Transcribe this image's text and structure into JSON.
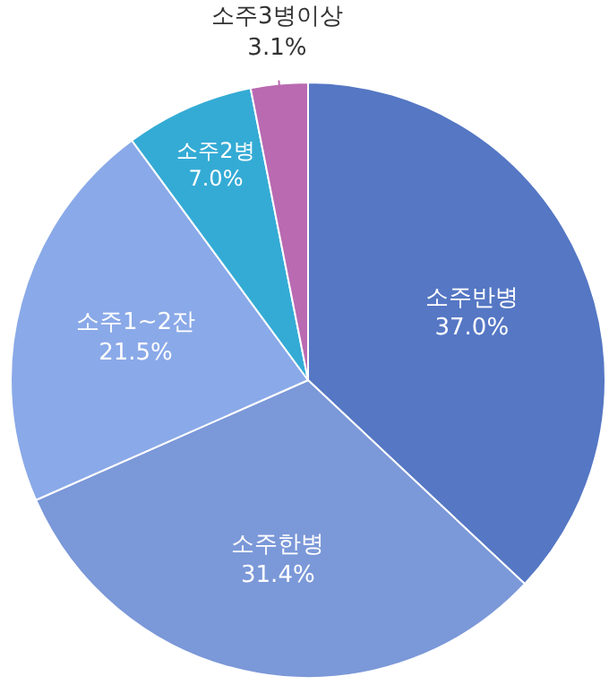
{
  "chart_data": {
    "type": "pie",
    "categories": [
      "소주반병",
      "소주한병",
      "소주1~2잔",
      "소주2병",
      "소주3병이상"
    ],
    "values": [
      37.0,
      31.4,
      21.5,
      7.0,
      3.1
    ],
    "colors": [
      "#5577c4",
      "#7b98d8",
      "#8aa9e8",
      "#34abd5",
      "#b96ab1"
    ],
    "value_labels": [
      "37.0%",
      "31.4%",
      "21.5%",
      "7.0%",
      "3.1%"
    ]
  }
}
